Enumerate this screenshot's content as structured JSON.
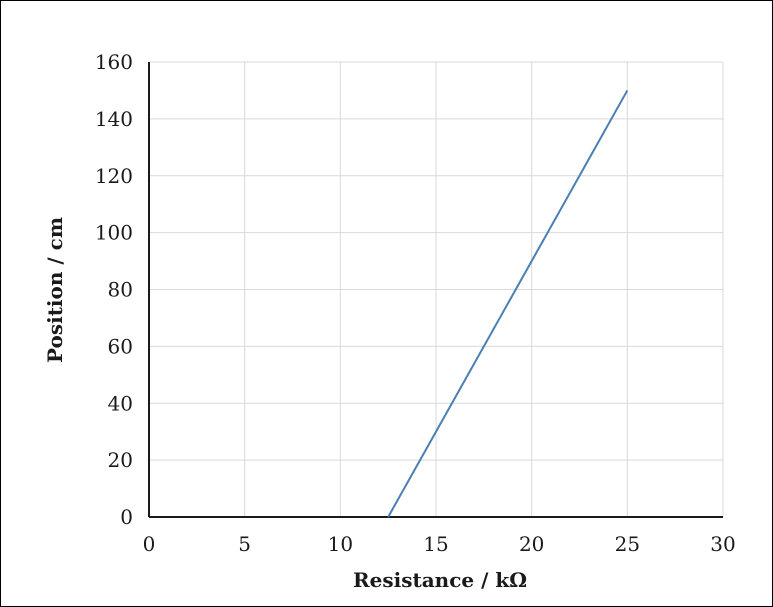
{
  "chart_data": {
    "type": "line",
    "title": "",
    "xlabel": "Resistance / kΩ",
    "ylabel": "Position / cm",
    "xlim": [
      0,
      30
    ],
    "ylim": [
      0,
      160
    ],
    "x_ticks": [
      0,
      5,
      10,
      15,
      20,
      25,
      30
    ],
    "y_ticks": [
      0,
      20,
      40,
      60,
      80,
      100,
      120,
      140,
      160
    ],
    "grid": true,
    "legend": "none",
    "series": [
      {
        "x": [
          12.5,
          25
        ],
        "y": [
          0,
          150
        ],
        "color": "#4a7fb5"
      }
    ]
  }
}
